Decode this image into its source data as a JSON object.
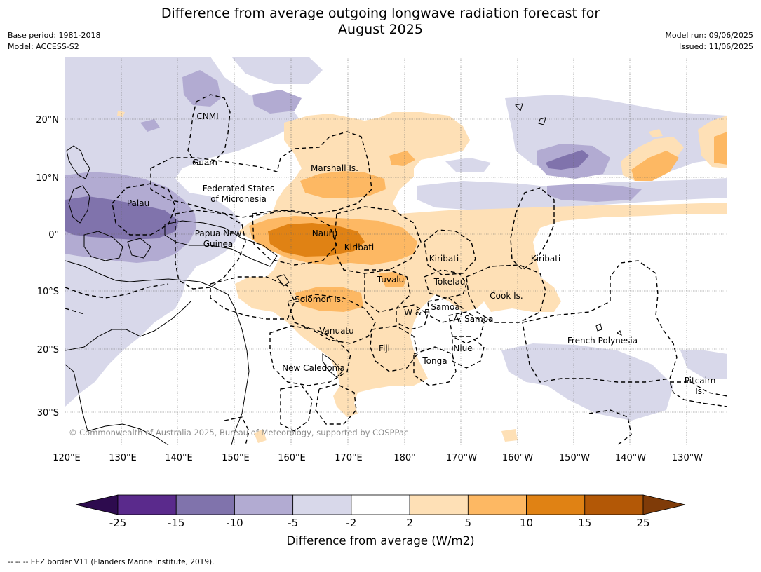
{
  "title_line1": "Difference from average outgoing longwave radiation forecast for",
  "title_line2": "August 2025",
  "base_period": "Base period: 1981-2018",
  "model": "Model: ACCESS-S2",
  "model_run": "Model run: 09/06/2025",
  "issued": "Issued: 11/06/2025",
  "longitude_ticks": [
    "120°E",
    "130°E",
    "140°E",
    "150°E",
    "160°E",
    "170°E",
    "180°",
    "170°W",
    "160°W",
    "150°W",
    "140°W",
    "130°W"
  ],
  "latitude_ticks": [
    "20°N",
    "10°N",
    "0°",
    "10°S",
    "20°S",
    "30°S"
  ],
  "places": {
    "cnmi": "CNMI",
    "guam": "Guam",
    "marshall": "Marshall Is.",
    "fsm1": "Federated States",
    "fsm2": "of Micronesia",
    "palau": "Palau",
    "png1": "Papua New",
    "png2": "Guinea",
    "nauru": "Nauru",
    "kiribati_w": "Kiribati",
    "kiribati_c": "Kiribati",
    "kiribati_e": "Kiribati",
    "tuvalu": "Tuvalu",
    "tokelau": "Tokelau",
    "cook": "Cook Is.",
    "solomon": "Solomon Is.",
    "wf": "W & F",
    "samoa": "Samoa",
    "asamoa": "A. Samoa",
    "vanuatu": "Vanuatu",
    "fiji": "Fiji",
    "niue": "Niue",
    "tonga": "Tonga",
    "newcal": "New Caledonia",
    "frpoly": "French Polynesia",
    "pitcairn1": "Pitcairn",
    "pitcairn2": "Is."
  },
  "copyright": "© Commonwealth of Australia 2025, Bureau of Meteorology, supported by COSPPac",
  "colorbar": {
    "ticks": [
      "-25",
      "-15",
      "-10",
      "-5",
      "-2",
      "2",
      "5",
      "10",
      "15",
      "25"
    ],
    "colors": [
      "#2d0b4e",
      "#5a2a8c",
      "#8073ac",
      "#b2abd2",
      "#d8d8ea",
      "#ffffff",
      "#fee0b6",
      "#fdb863",
      "#e08214",
      "#b35806",
      "#7f3b08"
    ],
    "label": "Difference from average (W/m2)"
  },
  "footer": "--  --  -- EEZ border V11 (Flanders Marine Institute, 2019)."
}
